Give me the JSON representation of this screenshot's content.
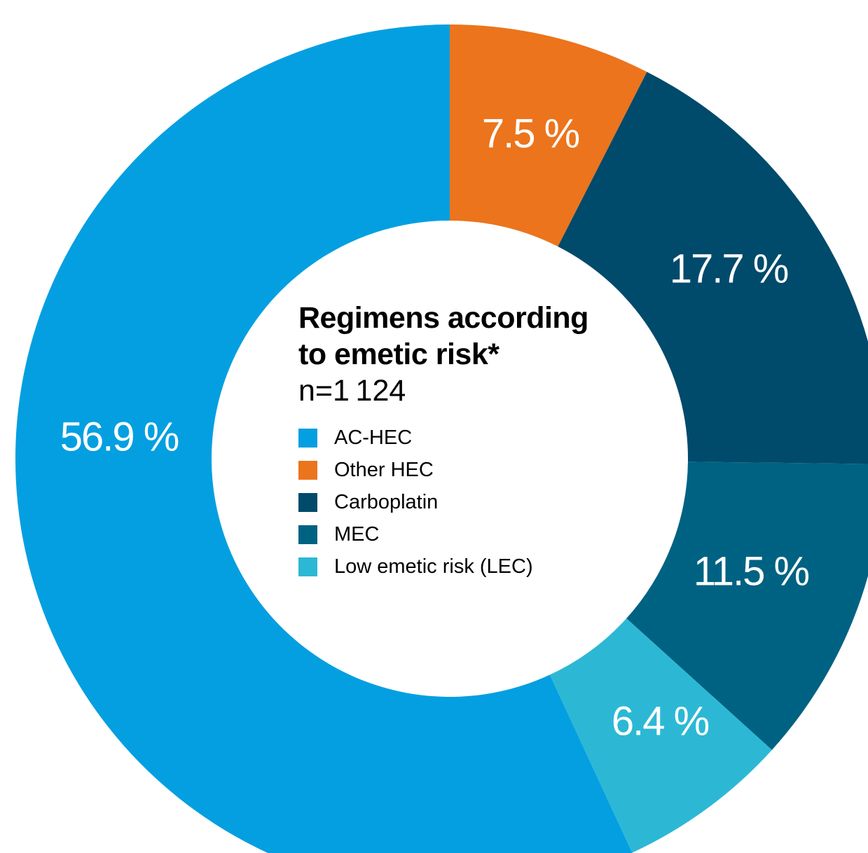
{
  "chart_data": {
    "type": "pie",
    "title": [
      "Regimens according",
      "to emetic risk*"
    ],
    "subtitle": "n=1 124",
    "slices": [
      {
        "name": "AC-HEC",
        "value": 56.9,
        "label": "56.9 %",
        "color": "#049fe1"
      },
      {
        "name": "Other HEC",
        "value": 7.5,
        "label": "7.5 %",
        "color": "#ec741c"
      },
      {
        "name": "Carboplatin",
        "value": 17.7,
        "label": "17.7 %",
        "color": "#004a6b"
      },
      {
        "name": "MEC",
        "value": 11.5,
        "label": "11.5 %",
        "color": "#006282"
      },
      {
        "name": "Low emetic risk (LEC)",
        "value": 6.4,
        "label": "6.4 %",
        "color": "#2cb8d5"
      }
    ],
    "legend": [
      "AC-HEC",
      "Other HEC",
      "Carboplatin",
      "MEC",
      "Low emetic risk (LEC)"
    ]
  }
}
